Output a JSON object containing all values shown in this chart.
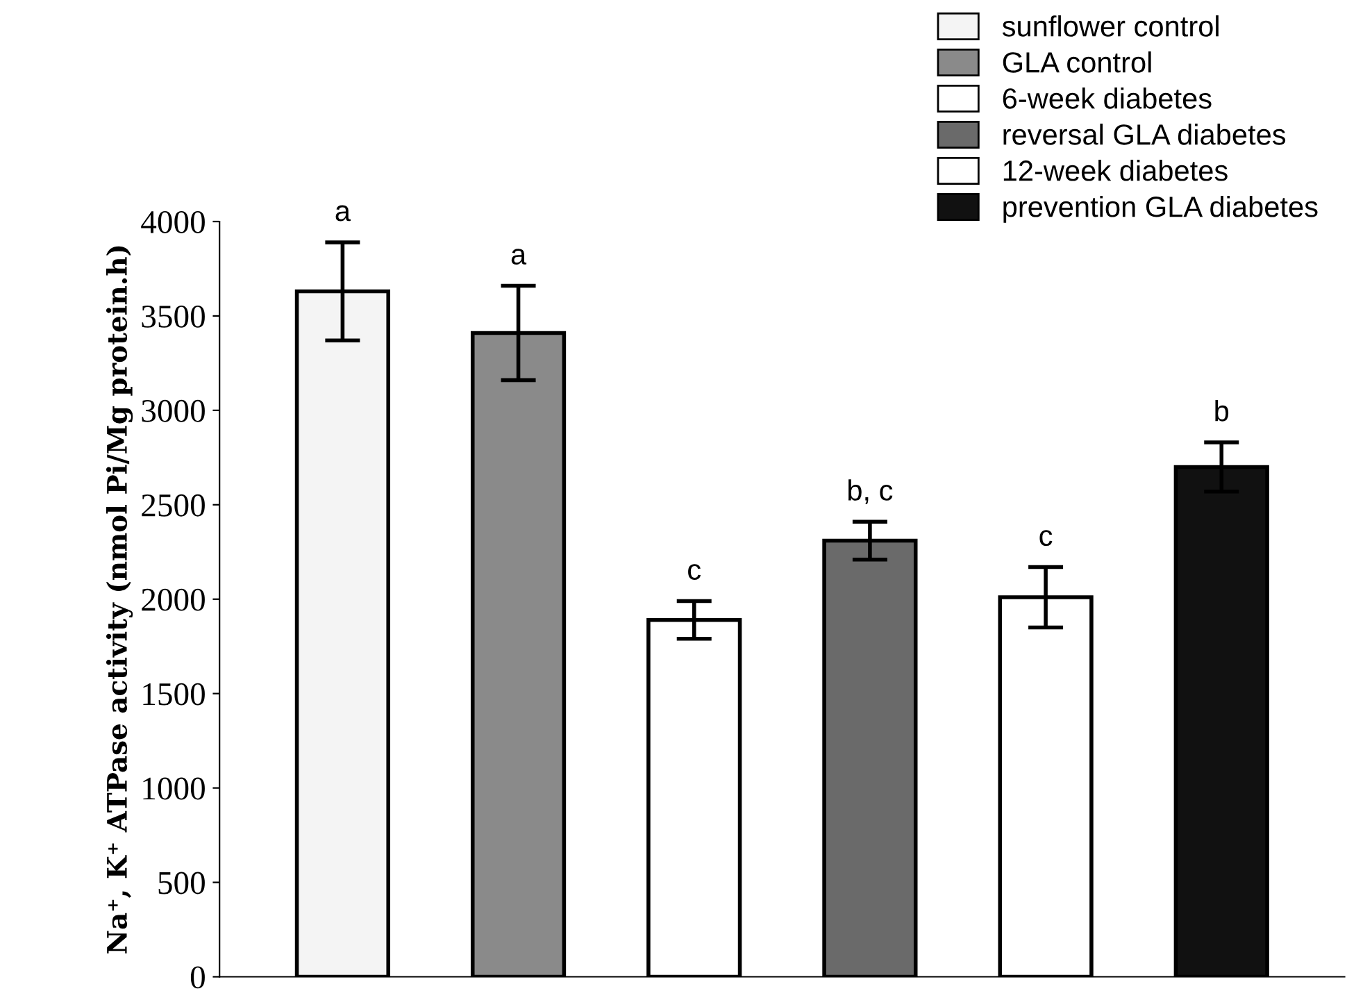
{
  "chart_data": {
    "type": "bar",
    "ylabel": "Na⁺, K⁺ ATPase activity (nmol Pi/Mg protein.h)",
    "categories": [
      null,
      null,
      null
    ],
    "series": [
      {
        "name": "sunflower control",
        "color": "#f4f4f4",
        "values": [
          3630,
          null,
          null
        ],
        "errors": [
          260,
          null,
          null
        ],
        "value_labels": [
          "a",
          null,
          null
        ]
      },
      {
        "name": "GLA control",
        "color": "#8a8a8a",
        "values": [
          3410,
          null,
          null
        ],
        "errors": [
          250,
          null,
          null
        ],
        "value_labels": [
          "a",
          null,
          null
        ]
      },
      {
        "name": "6-week diabetes",
        "color": "#ffffff",
        "values": [
          null,
          1890,
          null
        ],
        "errors": [
          null,
          100,
          null
        ],
        "value_labels": [
          null,
          "c",
          null
        ]
      },
      {
        "name": "reversal GLA diabetes",
        "color": "#6a6a6a",
        "values": [
          null,
          2310,
          null
        ],
        "errors": [
          null,
          100,
          null
        ],
        "value_labels": [
          null,
          "b, c",
          null
        ]
      },
      {
        "name": "12-week diabetes",
        "color": "#ffffff",
        "values": [
          null,
          null,
          2010
        ],
        "errors": [
          null,
          null,
          160
        ],
        "value_labels": [
          null,
          null,
          "c"
        ]
      },
      {
        "name": "prevention GLA diabetes",
        "color": "#111111",
        "values": [
          null,
          null,
          2700
        ],
        "errors": [
          null,
          null,
          130
        ],
        "value_labels": [
          null,
          null,
          "b"
        ]
      }
    ],
    "ylim": [
      0,
      4000
    ],
    "yticks": [
      0,
      500,
      1000,
      1500,
      2000,
      2500,
      3000,
      3500,
      4000
    ],
    "grid": false,
    "legend": "top right"
  }
}
